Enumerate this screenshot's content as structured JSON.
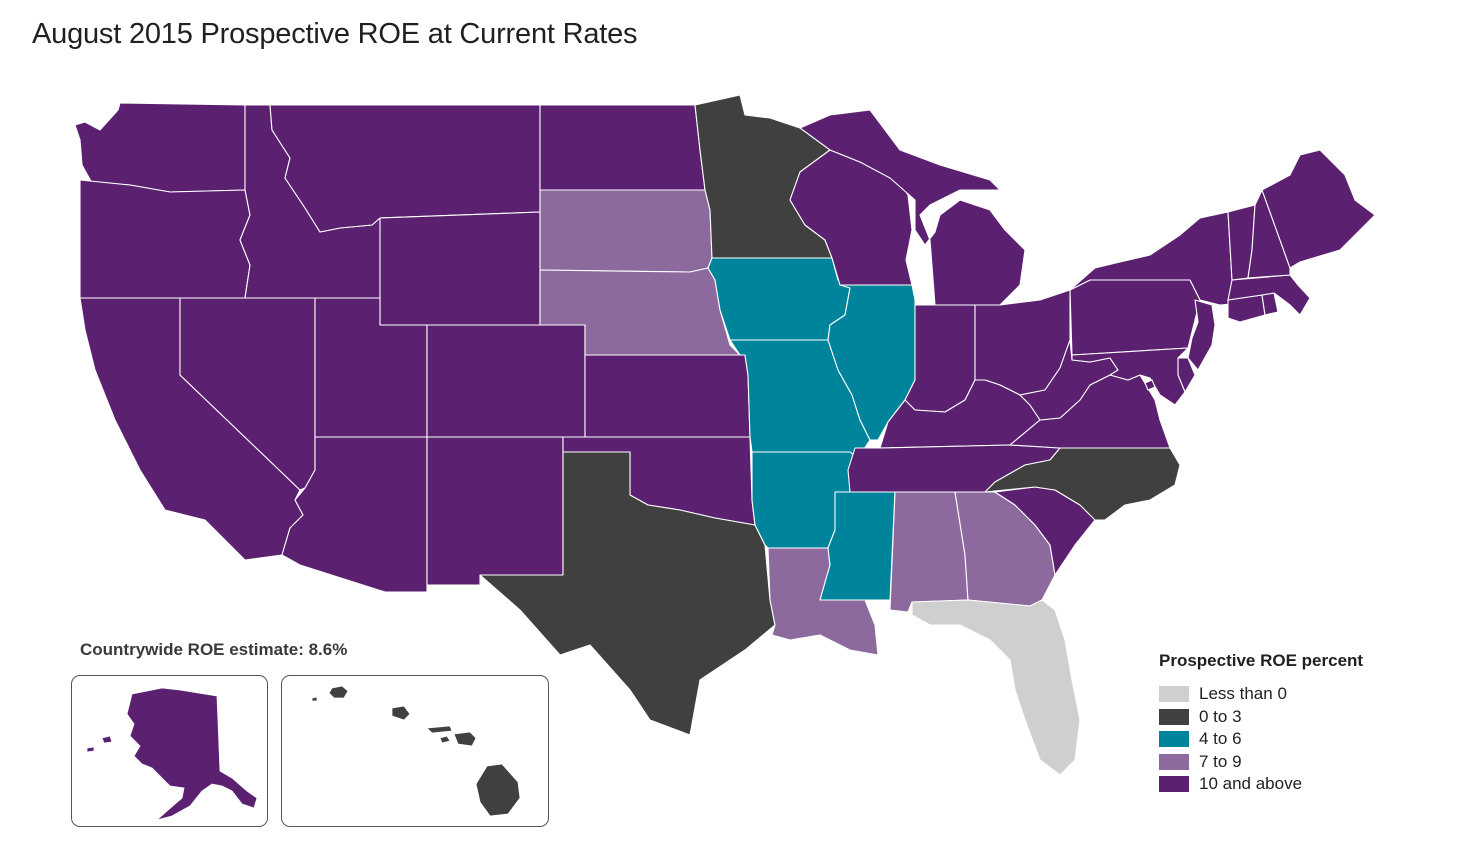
{
  "title": "August 2015 Prospective ROE at Current Rates",
  "countrywide_estimate": "Countrywide ROE estimate: 8.6%",
  "legend": {
    "title": "Prospective ROE percent",
    "categories": [
      {
        "key": "lt0",
        "label": "Less than 0",
        "color": "#cfcfcf"
      },
      {
        "key": "0to3",
        "label": "0 to 3",
        "color": "#404040"
      },
      {
        "key": "4to6",
        "label": "4 to 6",
        "color": "#00849b"
      },
      {
        "key": "7to9",
        "label": "7 to 9",
        "color": "#8d6a9d"
      },
      {
        "key": "10plus",
        "label": "10 and above",
        "color": "#5b2170"
      }
    ]
  },
  "states": {
    "WA": "10plus",
    "OR": "10plus",
    "CA": "10plus",
    "ID": "10plus",
    "NV": "10plus",
    "MT": "10plus",
    "WY": "10plus",
    "UT": "10plus",
    "AZ": "10plus",
    "CO": "10plus",
    "NM": "10plus",
    "ND": "10plus",
    "SD": "7to9",
    "NE": "7to9",
    "KS": "10plus",
    "OK": "10plus",
    "TX": "0to3",
    "MN": "0to3",
    "IA": "4to6",
    "MO": "4to6",
    "AR": "4to6",
    "LA": "7to9",
    "WI": "10plus",
    "IL": "4to6",
    "MI": "10plus",
    "IN": "10plus",
    "OH": "10plus",
    "KY": "10plus",
    "TN": "10plus",
    "MS": "4to6",
    "AL": "7to9",
    "GA": "7to9",
    "FL": "lt0",
    "SC": "10plus",
    "NC": "0to3",
    "VA": "10plus",
    "WV": "10plus",
    "PA": "10plus",
    "NY": "10plus",
    "NJ": "10plus",
    "DE": "10plus",
    "MD": "10plus",
    "DC": "10plus",
    "CT": "10plus",
    "RI": "10plus",
    "MA": "10plus",
    "VT": "10plus",
    "NH": "10plus",
    "ME": "10plus",
    "AK": "10plus",
    "HI": "0to3"
  }
}
